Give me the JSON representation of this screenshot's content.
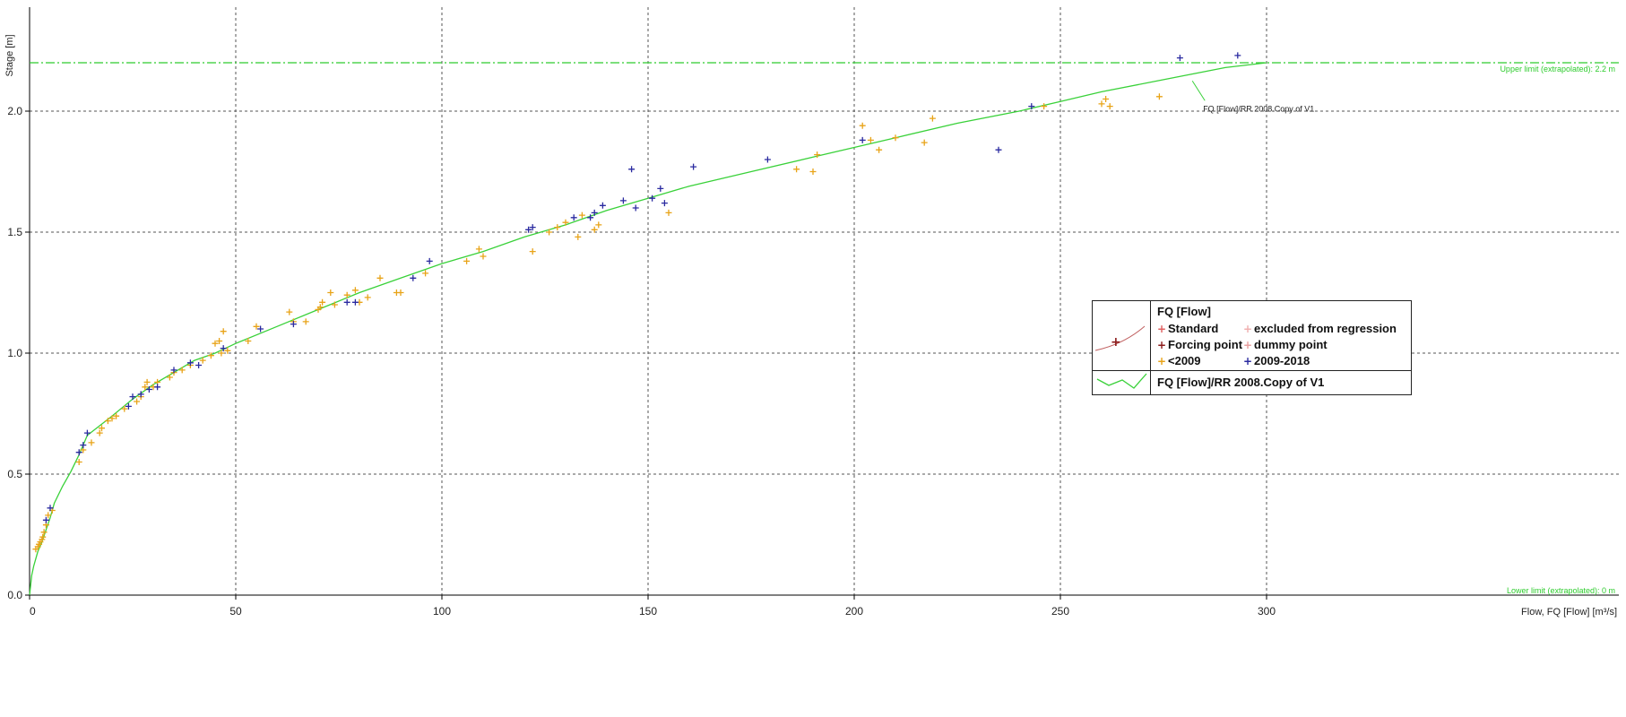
{
  "chart_data": {
    "type": "scatter",
    "xlabel": "Flow, FQ [Flow] [m³/s]",
    "ylabel": "Stage [m]",
    "xlim": [
      0,
      330
    ],
    "ylim": [
      0,
      2.4
    ],
    "xticks": [
      0,
      50,
      100,
      150,
      200,
      250,
      300
    ],
    "xtick_labels": [
      "0",
      "50",
      "100",
      "150",
      "200",
      "250",
      "300"
    ],
    "yticks": [
      0.0,
      0.5,
      1.0,
      1.5,
      2.0
    ],
    "ytick_labels": [
      "0.0",
      "0.5",
      "1.0",
      "1.5",
      "2.0"
    ],
    "grid": true,
    "upper_limit": {
      "value": 2.2,
      "label": "Upper limit (extrapolated): 2.2 m",
      "color": "#2ecc2e"
    },
    "lower_limit": {
      "value": 0,
      "label": "Lower limit (extrapolated): 0 m",
      "color": "#2ecc2e"
    },
    "curve_annotation": "FQ [Flow]/RR 2008.Copy of V1",
    "series": [
      {
        "name": "<2009",
        "marker": "+",
        "color": "#e8a317",
        "points": [
          [
            1.5,
            0.19
          ],
          [
            2,
            0.2
          ],
          [
            2.3,
            0.21
          ],
          [
            2.6,
            0.22
          ],
          [
            3,
            0.23
          ],
          [
            3.2,
            0.24
          ],
          [
            3.5,
            0.26
          ],
          [
            4,
            0.29
          ],
          [
            4.5,
            0.33
          ],
          [
            5.5,
            0.35
          ],
          [
            12,
            0.55
          ],
          [
            13,
            0.6
          ],
          [
            15,
            0.63
          ],
          [
            17,
            0.67
          ],
          [
            17.5,
            0.69
          ],
          [
            19,
            0.72
          ],
          [
            20,
            0.73
          ],
          [
            21,
            0.74
          ],
          [
            23,
            0.77
          ],
          [
            26,
            0.8
          ],
          [
            27,
            0.82
          ],
          [
            28,
            0.86
          ],
          [
            28.5,
            0.88
          ],
          [
            30,
            0.86
          ],
          [
            31,
            0.88
          ],
          [
            34,
            0.9
          ],
          [
            35,
            0.92
          ],
          [
            37,
            0.93
          ],
          [
            39,
            0.95
          ],
          [
            42,
            0.97
          ],
          [
            44,
            0.99
          ],
          [
            45,
            1.04
          ],
          [
            46,
            1.05
          ],
          [
            46.5,
            1.0
          ],
          [
            47,
            1.09
          ],
          [
            48,
            1.01
          ],
          [
            53,
            1.05
          ],
          [
            55,
            1.11
          ],
          [
            63,
            1.17
          ],
          [
            64,
            1.13
          ],
          [
            67,
            1.13
          ],
          [
            70,
            1.18
          ],
          [
            70.5,
            1.19
          ],
          [
            71,
            1.21
          ],
          [
            73,
            1.25
          ],
          [
            74,
            1.2
          ],
          [
            77,
            1.24
          ],
          [
            79,
            1.26
          ],
          [
            80,
            1.21
          ],
          [
            82,
            1.23
          ],
          [
            85,
            1.31
          ],
          [
            89,
            1.25
          ],
          [
            90,
            1.25
          ],
          [
            96,
            1.33
          ],
          [
            106,
            1.38
          ],
          [
            109,
            1.43
          ],
          [
            110,
            1.4
          ],
          [
            122,
            1.42
          ],
          [
            126,
            1.5
          ],
          [
            128,
            1.52
          ],
          [
            130,
            1.54
          ],
          [
            133,
            1.48
          ],
          [
            134,
            1.57
          ],
          [
            137,
            1.51
          ],
          [
            138,
            1.53
          ],
          [
            155,
            1.58
          ],
          [
            186,
            1.76
          ],
          [
            190,
            1.75
          ],
          [
            191,
            1.82
          ],
          [
            202,
            1.94
          ],
          [
            204,
            1.88
          ],
          [
            206,
            1.84
          ],
          [
            210,
            1.89
          ],
          [
            217,
            1.87
          ],
          [
            219,
            1.97
          ],
          [
            246,
            2.02
          ],
          [
            260,
            2.03
          ],
          [
            261,
            2.05
          ],
          [
            262,
            2.02
          ],
          [
            274,
            2.06
          ]
        ]
      },
      {
        "name": "2009-2018",
        "marker": "+",
        "color": "#2a2aa0",
        "points": [
          [
            4,
            0.31
          ],
          [
            5,
            0.36
          ],
          [
            12,
            0.59
          ],
          [
            13,
            0.62
          ],
          [
            14,
            0.67
          ],
          [
            24,
            0.78
          ],
          [
            25,
            0.82
          ],
          [
            27,
            0.83
          ],
          [
            29,
            0.85
          ],
          [
            31,
            0.86
          ],
          [
            35,
            0.93
          ],
          [
            39,
            0.96
          ],
          [
            41,
            0.95
          ],
          [
            47,
            1.02
          ],
          [
            56,
            1.1
          ],
          [
            64,
            1.12
          ],
          [
            77,
            1.21
          ],
          [
            79,
            1.21
          ],
          [
            93,
            1.31
          ],
          [
            97,
            1.38
          ],
          [
            121,
            1.51
          ],
          [
            122,
            1.52
          ],
          [
            132,
            1.56
          ],
          [
            136,
            1.56
          ],
          [
            137,
            1.58
          ],
          [
            139,
            1.61
          ],
          [
            144,
            1.63
          ],
          [
            146,
            1.76
          ],
          [
            147,
            1.6
          ],
          [
            151,
            1.64
          ],
          [
            153,
            1.68
          ],
          [
            154,
            1.62
          ],
          [
            161,
            1.77
          ],
          [
            179,
            1.8
          ],
          [
            202,
            1.88
          ],
          [
            235,
            1.84
          ],
          [
            243,
            2.02
          ],
          [
            279,
            2.22
          ],
          [
            293,
            2.23
          ]
        ]
      },
      {
        "name": "FQ [Flow]/RR 2008.Copy of V1",
        "type": "line",
        "color": "#39d139",
        "points": [
          [
            0,
            0
          ],
          [
            0.5,
            0.08
          ],
          [
            1,
            0.12
          ],
          [
            2,
            0.18
          ],
          [
            3,
            0.22
          ],
          [
            4,
            0.27
          ],
          [
            5,
            0.32
          ],
          [
            6,
            0.38
          ],
          [
            8,
            0.45
          ],
          [
            10,
            0.51
          ],
          [
            12,
            0.58
          ],
          [
            14,
            0.66
          ],
          [
            17,
            0.7
          ],
          [
            20,
            0.74
          ],
          [
            25,
            0.81
          ],
          [
            30,
            0.87
          ],
          [
            35,
            0.92
          ],
          [
            40,
            0.97
          ],
          [
            45,
            1.0
          ],
          [
            50,
            1.04
          ],
          [
            60,
            1.11
          ],
          [
            70,
            1.18
          ],
          [
            80,
            1.25
          ],
          [
            90,
            1.31
          ],
          [
            100,
            1.37
          ],
          [
            110,
            1.42
          ],
          [
            120,
            1.48
          ],
          [
            130,
            1.53
          ],
          [
            140,
            1.59
          ],
          [
            150,
            1.64
          ],
          [
            160,
            1.69
          ],
          [
            175,
            1.75
          ],
          [
            190,
            1.81
          ],
          [
            200,
            1.85
          ],
          [
            210,
            1.89
          ],
          [
            225,
            1.95
          ],
          [
            240,
            2.0
          ],
          [
            250,
            2.04
          ],
          [
            260,
            2.08
          ],
          [
            275,
            2.13
          ],
          [
            290,
            2.18
          ],
          [
            300,
            2.2
          ]
        ]
      }
    ]
  },
  "legend": {
    "title": "FQ [Flow]",
    "items": [
      {
        "label": "Standard",
        "symbol": "+",
        "color": "#e06060"
      },
      {
        "label": "excluded from regression",
        "symbol": "+",
        "color": "#f0b0b0"
      },
      {
        "label": "Forcing point",
        "symbol": "+",
        "color": "#8b1a1a"
      },
      {
        "label": "dummy point",
        "symbol": "+",
        "color": "#e8a0a0"
      },
      {
        "label": "<2009",
        "symbol": "+",
        "color": "#e8a317"
      },
      {
        "label": "2009-2018",
        "symbol": "+",
        "color": "#2a2aa0"
      }
    ],
    "curve_label": "FQ [Flow]/RR 2008.Copy of V1",
    "curve_color": "#39d139",
    "sample_color": "#c06060"
  }
}
